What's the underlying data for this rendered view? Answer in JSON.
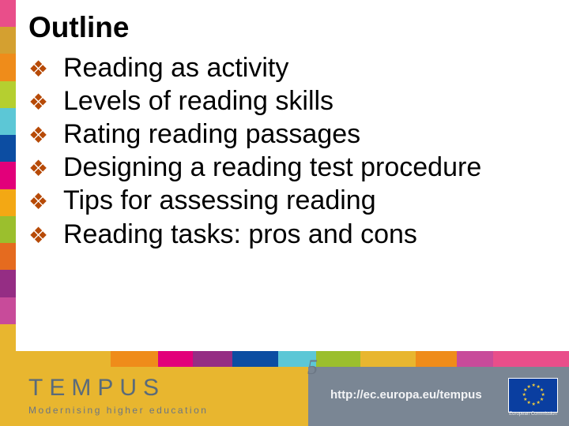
{
  "title": "Outline",
  "bullets": [
    "Reading as activity",
    "Levels of reading skills",
    "Rating reading passages",
    "Designing a reading test procedure",
    "Tips for assessing reading",
    "Reading tasks: pros and cons"
  ],
  "bullet_glyph": "❖",
  "bullet_color": "#b74a07",
  "text_color": "#000000",
  "left_stripe_colors": [
    "#e94e8a",
    "#d4a030",
    "#ef8c1a",
    "#b5cf30",
    "#5cc7d6",
    "#0c4da2",
    "#e2007a",
    "#f3a814",
    "#9bbf2d",
    "#e56b1f",
    "#952d84",
    "#c84b9a",
    "#e8b62f"
  ],
  "footer": {
    "brand": "TEMPUS",
    "tagline": "Modernising higher education",
    "url": "http://ec.europa.eu/tempus",
    "left_bg": "#e8b62f",
    "right_bg": "#7a8694",
    "brand_color": "#5a6b7a",
    "tagline_color": "#6a7585",
    "url_color": "#f3f4f6",
    "eu_flag_bg": "#0a3ea0",
    "eu_star_color": "#f6cf3a",
    "eu_caption": "European Commission",
    "decorative_5": "5",
    "top_stripe": [
      {
        "c": "#e8b62f",
        "w": 140
      },
      {
        "c": "#ef8c1a",
        "w": 60
      },
      {
        "c": "#e2007a",
        "w": 44
      },
      {
        "c": "#952d84",
        "w": 50
      },
      {
        "c": "#0c4da2",
        "w": 58
      },
      {
        "c": "#5cc7d6",
        "w": 48
      },
      {
        "c": "#9bbf2d",
        "w": 56
      },
      {
        "c": "#e8b62f",
        "w": 70
      },
      {
        "c": "#ef8c1a",
        "w": 52
      },
      {
        "c": "#c84b9a",
        "w": 46
      },
      {
        "c": "#e94e8a",
        "w": 96
      }
    ]
  }
}
